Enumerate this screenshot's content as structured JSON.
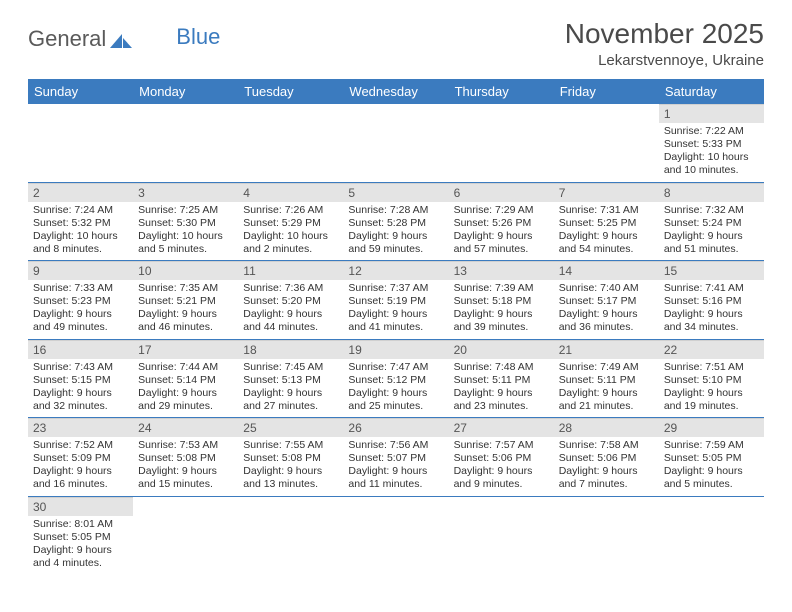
{
  "logo": {
    "text1": "General",
    "text2": "Blue"
  },
  "title": "November 2025",
  "location": "Lekarstvennoye, Ukraine",
  "colors": {
    "header_bg": "#3b7bbf",
    "header_text": "#ffffff",
    "daynum_bg": "#e4e4e4",
    "row_border": "#3b7bbf",
    "body_text": "#333333",
    "title_text": "#4a4a4a"
  },
  "day_names": [
    "Sunday",
    "Monday",
    "Tuesday",
    "Wednesday",
    "Thursday",
    "Friday",
    "Saturday"
  ],
  "weeks": [
    [
      null,
      null,
      null,
      null,
      null,
      null,
      {
        "n": "1",
        "sr": "Sunrise: 7:22 AM",
        "ss": "Sunset: 5:33 PM",
        "dl": "Daylight: 10 hours and 10 minutes."
      }
    ],
    [
      {
        "n": "2",
        "sr": "Sunrise: 7:24 AM",
        "ss": "Sunset: 5:32 PM",
        "dl": "Daylight: 10 hours and 8 minutes."
      },
      {
        "n": "3",
        "sr": "Sunrise: 7:25 AM",
        "ss": "Sunset: 5:30 PM",
        "dl": "Daylight: 10 hours and 5 minutes."
      },
      {
        "n": "4",
        "sr": "Sunrise: 7:26 AM",
        "ss": "Sunset: 5:29 PM",
        "dl": "Daylight: 10 hours and 2 minutes."
      },
      {
        "n": "5",
        "sr": "Sunrise: 7:28 AM",
        "ss": "Sunset: 5:28 PM",
        "dl": "Daylight: 9 hours and 59 minutes."
      },
      {
        "n": "6",
        "sr": "Sunrise: 7:29 AM",
        "ss": "Sunset: 5:26 PM",
        "dl": "Daylight: 9 hours and 57 minutes."
      },
      {
        "n": "7",
        "sr": "Sunrise: 7:31 AM",
        "ss": "Sunset: 5:25 PM",
        "dl": "Daylight: 9 hours and 54 minutes."
      },
      {
        "n": "8",
        "sr": "Sunrise: 7:32 AM",
        "ss": "Sunset: 5:24 PM",
        "dl": "Daylight: 9 hours and 51 minutes."
      }
    ],
    [
      {
        "n": "9",
        "sr": "Sunrise: 7:33 AM",
        "ss": "Sunset: 5:23 PM",
        "dl": "Daylight: 9 hours and 49 minutes."
      },
      {
        "n": "10",
        "sr": "Sunrise: 7:35 AM",
        "ss": "Sunset: 5:21 PM",
        "dl": "Daylight: 9 hours and 46 minutes."
      },
      {
        "n": "11",
        "sr": "Sunrise: 7:36 AM",
        "ss": "Sunset: 5:20 PM",
        "dl": "Daylight: 9 hours and 44 minutes."
      },
      {
        "n": "12",
        "sr": "Sunrise: 7:37 AM",
        "ss": "Sunset: 5:19 PM",
        "dl": "Daylight: 9 hours and 41 minutes."
      },
      {
        "n": "13",
        "sr": "Sunrise: 7:39 AM",
        "ss": "Sunset: 5:18 PM",
        "dl": "Daylight: 9 hours and 39 minutes."
      },
      {
        "n": "14",
        "sr": "Sunrise: 7:40 AM",
        "ss": "Sunset: 5:17 PM",
        "dl": "Daylight: 9 hours and 36 minutes."
      },
      {
        "n": "15",
        "sr": "Sunrise: 7:41 AM",
        "ss": "Sunset: 5:16 PM",
        "dl": "Daylight: 9 hours and 34 minutes."
      }
    ],
    [
      {
        "n": "16",
        "sr": "Sunrise: 7:43 AM",
        "ss": "Sunset: 5:15 PM",
        "dl": "Daylight: 9 hours and 32 minutes."
      },
      {
        "n": "17",
        "sr": "Sunrise: 7:44 AM",
        "ss": "Sunset: 5:14 PM",
        "dl": "Daylight: 9 hours and 29 minutes."
      },
      {
        "n": "18",
        "sr": "Sunrise: 7:45 AM",
        "ss": "Sunset: 5:13 PM",
        "dl": "Daylight: 9 hours and 27 minutes."
      },
      {
        "n": "19",
        "sr": "Sunrise: 7:47 AM",
        "ss": "Sunset: 5:12 PM",
        "dl": "Daylight: 9 hours and 25 minutes."
      },
      {
        "n": "20",
        "sr": "Sunrise: 7:48 AM",
        "ss": "Sunset: 5:11 PM",
        "dl": "Daylight: 9 hours and 23 minutes."
      },
      {
        "n": "21",
        "sr": "Sunrise: 7:49 AM",
        "ss": "Sunset: 5:11 PM",
        "dl": "Daylight: 9 hours and 21 minutes."
      },
      {
        "n": "22",
        "sr": "Sunrise: 7:51 AM",
        "ss": "Sunset: 5:10 PM",
        "dl": "Daylight: 9 hours and 19 minutes."
      }
    ],
    [
      {
        "n": "23",
        "sr": "Sunrise: 7:52 AM",
        "ss": "Sunset: 5:09 PM",
        "dl": "Daylight: 9 hours and 16 minutes."
      },
      {
        "n": "24",
        "sr": "Sunrise: 7:53 AM",
        "ss": "Sunset: 5:08 PM",
        "dl": "Daylight: 9 hours and 15 minutes."
      },
      {
        "n": "25",
        "sr": "Sunrise: 7:55 AM",
        "ss": "Sunset: 5:08 PM",
        "dl": "Daylight: 9 hours and 13 minutes."
      },
      {
        "n": "26",
        "sr": "Sunrise: 7:56 AM",
        "ss": "Sunset: 5:07 PM",
        "dl": "Daylight: 9 hours and 11 minutes."
      },
      {
        "n": "27",
        "sr": "Sunrise: 7:57 AM",
        "ss": "Sunset: 5:06 PM",
        "dl": "Daylight: 9 hours and 9 minutes."
      },
      {
        "n": "28",
        "sr": "Sunrise: 7:58 AM",
        "ss": "Sunset: 5:06 PM",
        "dl": "Daylight: 9 hours and 7 minutes."
      },
      {
        "n": "29",
        "sr": "Sunrise: 7:59 AM",
        "ss": "Sunset: 5:05 PM",
        "dl": "Daylight: 9 hours and 5 minutes."
      }
    ],
    [
      {
        "n": "30",
        "sr": "Sunrise: 8:01 AM",
        "ss": "Sunset: 5:05 PM",
        "dl": "Daylight: 9 hours and 4 minutes."
      },
      null,
      null,
      null,
      null,
      null,
      null
    ]
  ]
}
